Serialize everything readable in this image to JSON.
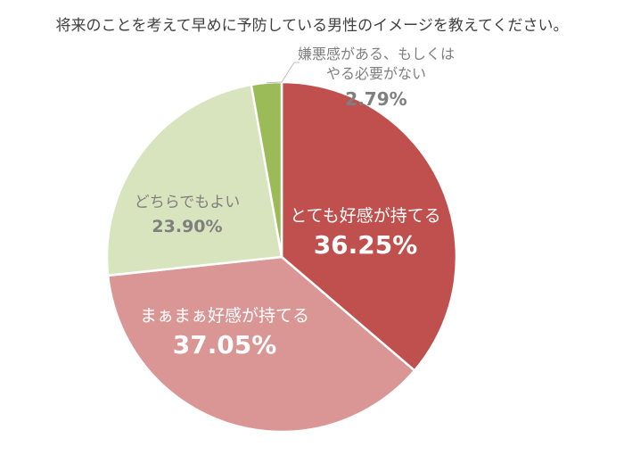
{
  "chart_data": {
    "type": "pie",
    "title": "将来のことを考えて早めに予防している男性のイメージを教えてください。",
    "start_angle_deg": 0,
    "direction": "clockwise",
    "slices": [
      {
        "label_lines": [
          "とても好感が持てる"
        ],
        "value_text": "36.25%",
        "value": 36.25,
        "color": "#c0504d",
        "text_color": "#ffffff"
      },
      {
        "label_lines": [
          "まぁまぁ好感が持てる"
        ],
        "value_text": "37.05%",
        "value": 37.05,
        "color": "#d99694",
        "text_color": "#ffffff"
      },
      {
        "label_lines": [
          "どちらでもよい"
        ],
        "value_text": "23.90%",
        "value": 23.9,
        "color": "#d7e4bd",
        "text_color": "#7f7f7f"
      },
      {
        "label_lines": [
          "嫌悪感がある、もしくは",
          "やる必要がない"
        ],
        "value_text": "2.79%",
        "value": 2.79,
        "color": "#9bbb59",
        "text_color": "#7f7f7f"
      }
    ]
  }
}
